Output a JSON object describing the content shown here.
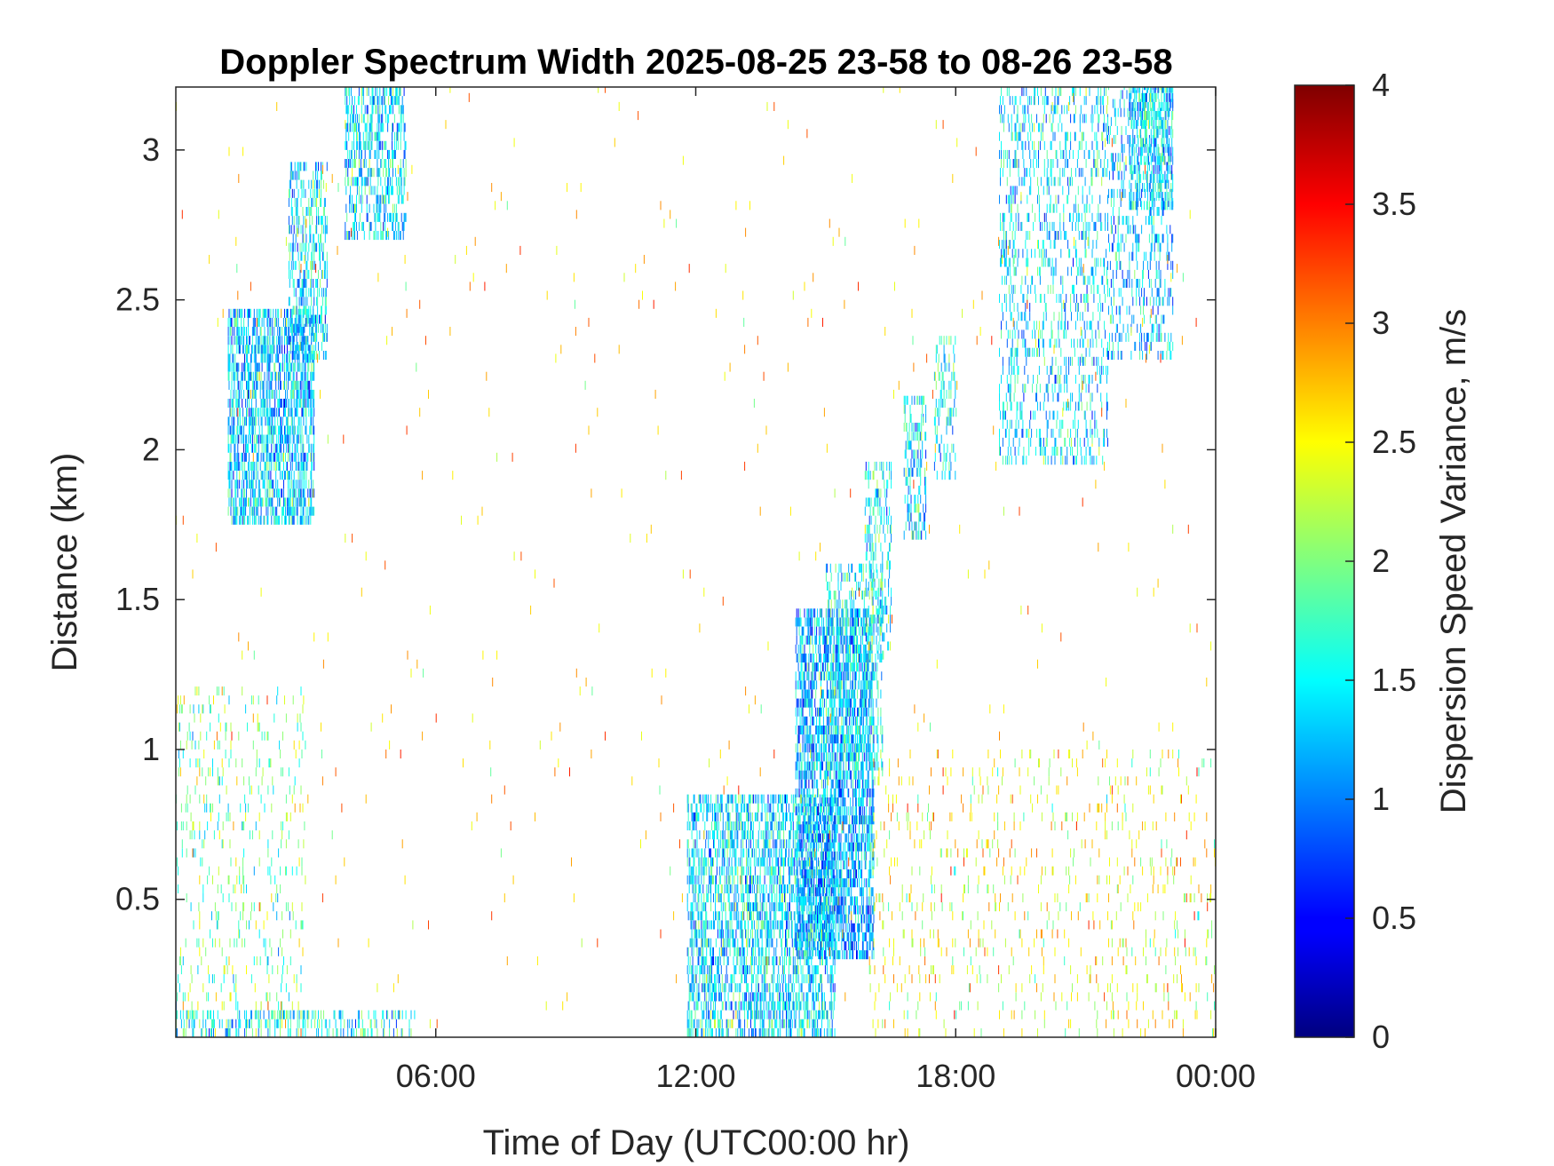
{
  "chart_data": {
    "type": "heatmap",
    "title": "Doppler Spectrum Width 2025-08-25 23-58 to 08-26 23-58",
    "xlabel": "Time of Day (UTC00:00 hr)",
    "ylabel": "Distance (km)",
    "xlim_hours": [
      0,
      24
    ],
    "ylim": [
      0.04,
      3.21
    ],
    "xticks": [
      {
        "value": 6,
        "label": "06:00"
      },
      {
        "value": 12,
        "label": "12:00"
      },
      {
        "value": 18,
        "label": "18:00"
      },
      {
        "value": 24,
        "label": "00:00"
      }
    ],
    "yticks": [
      {
        "value": 0.5,
        "label": "0.5"
      },
      {
        "value": 1,
        "label": "1"
      },
      {
        "value": 1.5,
        "label": "1.5"
      },
      {
        "value": 2,
        "label": "2"
      },
      {
        "value": 2.5,
        "label": "2.5"
      },
      {
        "value": 3,
        "label": "3"
      }
    ],
    "colorbar": {
      "label": "Dispersion Speed Variance, m/s",
      "colormap": "jet",
      "clim": [
        0,
        4
      ],
      "ticks": [
        {
          "value": 0,
          "label": "0"
        },
        {
          "value": 0.5,
          "label": "0.5"
        },
        {
          "value": 1,
          "label": "1"
        },
        {
          "value": 1.5,
          "label": "1.5"
        },
        {
          "value": 2,
          "label": "2"
        },
        {
          "value": 2.5,
          "label": "2.5"
        },
        {
          "value": 3,
          "label": "3"
        },
        {
          "value": 3.5,
          "label": "3.5"
        },
        {
          "value": 4,
          "label": "4"
        }
      ]
    },
    "echo_regions": [
      {
        "t": [
          1.2,
          3.2
        ],
        "d": [
          1.75,
          2.45
        ],
        "density": 0.55,
        "value_mean": 1.3
      },
      {
        "t": [
          2.6,
          3.5
        ],
        "d": [
          2.3,
          2.95
        ],
        "density": 0.35,
        "value_mean": 1.4
      },
      {
        "t": [
          3.9,
          5.3
        ],
        "d": [
          2.7,
          3.21
        ],
        "density": 0.4,
        "value_mean": 1.4
      },
      {
        "t": [
          0.0,
          3.0
        ],
        "d": [
          0.04,
          1.2
        ],
        "density": 0.08,
        "value_mean": 1.9
      },
      {
        "t": [
          0.0,
          5.5
        ],
        "d": [
          0.04,
          0.12
        ],
        "density": 0.25,
        "value_mean": 1.5
      },
      {
        "t": [
          11.8,
          15.2
        ],
        "d": [
          0.04,
          0.85
        ],
        "density": 0.45,
        "value_mean": 1.4
      },
      {
        "t": [
          14.3,
          16.1
        ],
        "d": [
          0.3,
          1.45
        ],
        "density": 0.55,
        "value_mean": 1.2
      },
      {
        "t": [
          15.0,
          16.3
        ],
        "d": [
          0.9,
          1.6
        ],
        "density": 0.25,
        "value_mean": 1.5
      },
      {
        "t": [
          15.9,
          16.5
        ],
        "d": [
          1.3,
          1.95
        ],
        "density": 0.3,
        "value_mean": 1.5
      },
      {
        "t": [
          16.8,
          17.3
        ],
        "d": [
          1.7,
          2.15
        ],
        "density": 0.3,
        "value_mean": 1.4
      },
      {
        "t": [
          17.5,
          18.0
        ],
        "d": [
          1.9,
          2.35
        ],
        "density": 0.25,
        "value_mean": 1.5
      },
      {
        "t": [
          19.0,
          21.5
        ],
        "d": [
          1.95,
          3.21
        ],
        "density": 0.2,
        "value_mean": 1.4
      },
      {
        "t": [
          21.5,
          23.0
        ],
        "d": [
          2.3,
          3.21
        ],
        "density": 0.2,
        "value_mean": 1.3
      },
      {
        "t": [
          22.0,
          23.0
        ],
        "d": [
          2.8,
          3.2
        ],
        "density": 0.45,
        "value_mean": 1.4
      },
      {
        "t": [
          16.0,
          24.0
        ],
        "d": [
          0.04,
          1.0
        ],
        "density": 0.05,
        "value_mean": 2.4
      }
    ],
    "background_noise": {
      "density": 0.004,
      "value_mean": 2.7
    },
    "grid": false
  }
}
